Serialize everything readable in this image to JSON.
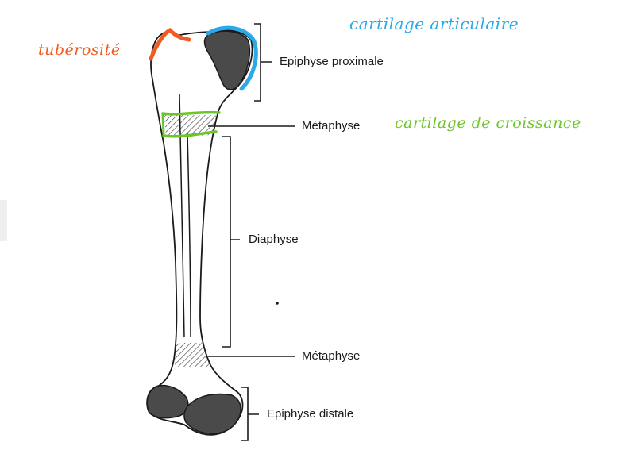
{
  "colors": {
    "tuberosity": "#ee5c22",
    "articular_cartilage": "#2aa8e8",
    "growth_cartilage": "#6cc62a",
    "ink": "#1a1a1a",
    "dark_epiphysis": "#4a4a4a"
  },
  "labels": {
    "epiphyse_proximale": "Epiphyse proximale",
    "metaphyse_top": "Métaphyse",
    "diaphyse": "Diaphyse",
    "metaphyse_bottom": "Métaphyse",
    "epiphyse_distale": "Epiphyse distale"
  },
  "annotations": {
    "tuberosite": "tubérosité",
    "cartilage_articulaire": "cartilage articulaire",
    "cartilage_croissance": "cartilage de croissance"
  }
}
